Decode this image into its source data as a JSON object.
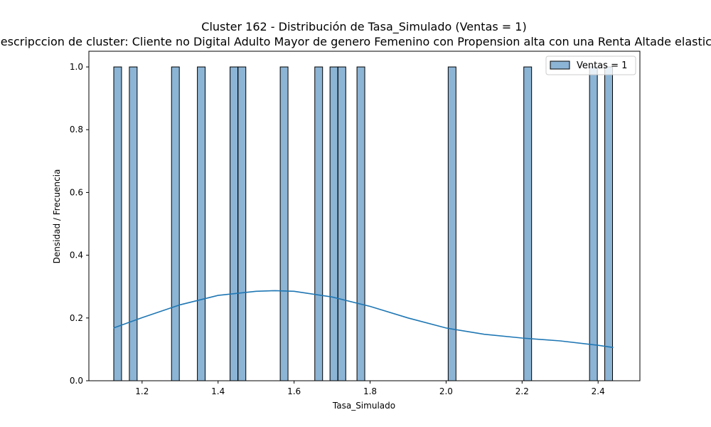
{
  "chart_data": {
    "type": "bar",
    "title": "Cluster 162 - Distribución de Tasa_Simulado (Ventas = 1)",
    "subtitle": "Descripccion de cluster: Cliente no Digital Adulto Mayor de genero Femenino con Propension alta con una Renta Altade elasticidad",
    "xlabel": "Tasa_Simulado",
    "ylabel": "Densidad / Frecuencia",
    "xlim": [
      1.06,
      2.51
    ],
    "ylim": [
      0.0,
      1.05
    ],
    "xticks": [
      "1.2",
      "1.4",
      "1.6",
      "1.8",
      "2.0",
      "2.2",
      "2.4"
    ],
    "yticks": [
      "0.0",
      "0.2",
      "0.4",
      "0.6",
      "0.8",
      "1.0"
    ],
    "bin_width": 0.0205,
    "series": [
      {
        "name": "Ventas = 1",
        "kind": "histogram",
        "color": "#8cb4d5",
        "edge_color": "#000000",
        "bins": [
          {
            "x": 1.1255,
            "y": 1.0
          },
          {
            "x": 1.1665,
            "y": 1.0
          },
          {
            "x": 1.2775,
            "y": 1.0
          },
          {
            "x": 1.3455,
            "y": 1.0
          },
          {
            "x": 1.4315,
            "y": 1.0
          },
          {
            "x": 1.4525,
            "y": 1.0
          },
          {
            "x": 1.5635,
            "y": 1.0
          },
          {
            "x": 1.6545,
            "y": 1.0
          },
          {
            "x": 1.6945,
            "y": 1.0
          },
          {
            "x": 1.7155,
            "y": 1.0
          },
          {
            "x": 1.7655,
            "y": 1.0
          },
          {
            "x": 2.0055,
            "y": 1.0
          },
          {
            "x": 2.2045,
            "y": 1.0
          },
          {
            "x": 2.3775,
            "y": 1.0
          },
          {
            "x": 2.4175,
            "y": 1.0
          }
        ]
      },
      {
        "kind": "kde",
        "color": "#1f77b4",
        "points": [
          [
            1.125,
            0.168
          ],
          [
            1.2,
            0.201
          ],
          [
            1.3,
            0.242
          ],
          [
            1.4,
            0.272
          ],
          [
            1.5,
            0.285
          ],
          [
            1.55,
            0.287
          ],
          [
            1.6,
            0.285
          ],
          [
            1.7,
            0.267
          ],
          [
            1.8,
            0.237
          ],
          [
            1.9,
            0.2
          ],
          [
            2.0,
            0.168
          ],
          [
            2.1,
            0.148
          ],
          [
            2.2,
            0.136
          ],
          [
            2.3,
            0.127
          ],
          [
            2.4,
            0.113
          ],
          [
            2.44,
            0.106
          ]
        ]
      }
    ],
    "legend": {
      "position": "top-right",
      "entries": [
        "Ventas = 1"
      ]
    },
    "grid": false
  }
}
